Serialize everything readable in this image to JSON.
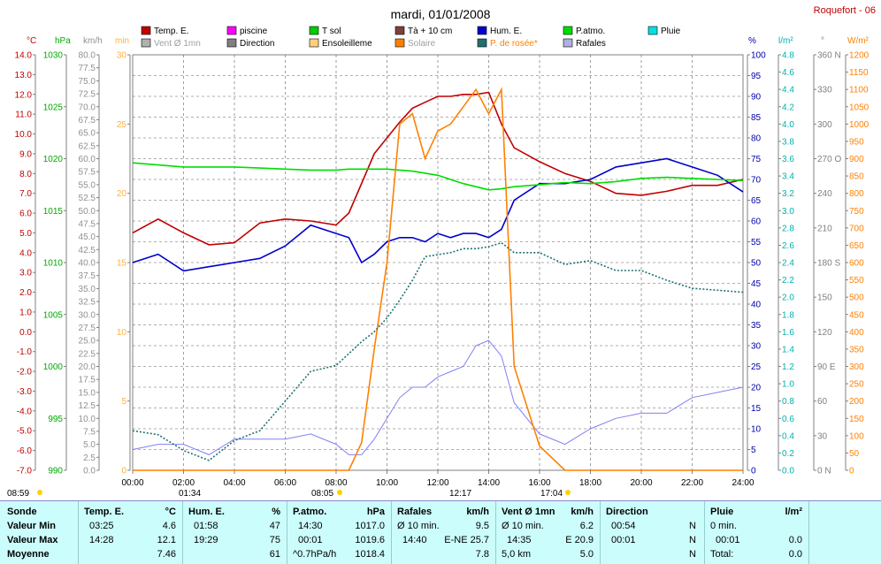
{
  "header": {
    "title": "mardi, 01/01/2008",
    "station": "Roquefort - 06"
  },
  "legend": [
    {
      "label": "Temp. E.",
      "color": "#c00000"
    },
    {
      "label": "piscine",
      "color": "#ff00ff"
    },
    {
      "label": "T sol",
      "color": "#00cc00"
    },
    {
      "label": "Tà + 10 cm",
      "color": "#804040"
    },
    {
      "label": "Hum. E.",
      "color": "#0000cc"
    },
    {
      "label": "P.atmo.",
      "color": "#00dd00"
    },
    {
      "label": "Pluie",
      "color": "#00e0e0"
    },
    {
      "label": "Vent Ø 1mn",
      "color": "#b0b0b0"
    },
    {
      "label": "Direction",
      "color": "#808080"
    },
    {
      "label": "Ensoleilleme",
      "color": "#ffd080"
    },
    {
      "label": "Solaire",
      "color": "#ff8000"
    },
    {
      "label": "P. de rosée*",
      "color": "#207070"
    },
    {
      "label": "Rafales",
      "color": "#b0b0e0"
    }
  ],
  "axes": {
    "temp": {
      "unit": "°C",
      "color": "#c00000",
      "ticks": [
        "14.0",
        "13.0",
        "12.0",
        "11.0",
        "10.0",
        "9.0",
        "8.0",
        "7.0",
        "6.0",
        "5.0",
        "4.0",
        "3.0",
        "2.0",
        "1.0",
        "0.0",
        "-1.0",
        "-2.0",
        "-3.0",
        "-4.0",
        "-5.0",
        "-6.0",
        "-7.0"
      ]
    },
    "hpa": {
      "unit": "hPa",
      "color": "#00aa00",
      "ticks": [
        "1030",
        "1025",
        "1020",
        "1015",
        "1010",
        "1005",
        "1000",
        "995",
        "990"
      ]
    },
    "kmh": {
      "unit": "km/h",
      "color": "#909090",
      "ticks": [
        "80.0",
        "77.5",
        "75.0",
        "72.5",
        "70.0",
        "67.5",
        "65.0",
        "62.5",
        "60.0",
        "57.5",
        "55.0",
        "52.5",
        "50.0",
        "47.5",
        "45.0",
        "42.5",
        "40.0",
        "37.5",
        "35.0",
        "32.5",
        "30.0",
        "27.5",
        "25.0",
        "22.5",
        "20.0",
        "17.5",
        "15.0",
        "12.5",
        "10.0",
        "7.5",
        "5.0",
        "2.5",
        "0.0"
      ]
    },
    "min": {
      "unit": "min",
      "color": "#ffb040",
      "ticks": [
        "30",
        "25",
        "20",
        "15",
        "10",
        "5",
        "0"
      ]
    },
    "pct": {
      "unit": "%",
      "color": "#0000aa",
      "ticks": [
        "100",
        "95",
        "90",
        "85",
        "80",
        "75",
        "70",
        "65",
        "60",
        "55",
        "50",
        "45",
        "40",
        "35",
        "30",
        "25",
        "20",
        "15",
        "10",
        "5",
        "0"
      ]
    },
    "rain": {
      "unit": "l/m²",
      "color": "#00b0b0",
      "ticks": [
        "4.8",
        "4.6",
        "4.4",
        "4.2",
        "4.0",
        "3.8",
        "3.6",
        "3.4",
        "3.2",
        "3.0",
        "2.8",
        "2.6",
        "2.4",
        "2.2",
        "2.0",
        "1.8",
        "1.6",
        "1.4",
        "1.2",
        "1.0",
        "0.8",
        "0.6",
        "0.4",
        "0.2",
        "0.0"
      ]
    },
    "dir": {
      "unit": "°",
      "color": "#808080",
      "ticks": [
        "360 N",
        "330",
        "300",
        "270 O",
        "240",
        "210",
        "180 S",
        "150",
        "120",
        "90 E",
        "60",
        "30",
        "0 N"
      ]
    },
    "wm2": {
      "unit": "W/m²",
      "color": "#ff8000",
      "ticks": [
        "1200",
        "1150",
        "1100",
        "1050",
        "1000",
        "950",
        "900",
        "850",
        "800",
        "750",
        "700",
        "650",
        "600",
        "550",
        "500",
        "450",
        "400",
        "350",
        "300",
        "250",
        "200",
        "150",
        "100",
        "50",
        "0"
      ]
    },
    "x_ticks": [
      "00:00",
      "02:00",
      "04:00",
      "06:00",
      "08:00",
      "10:00",
      "12:00",
      "14:00",
      "16:00",
      "18:00",
      "20:00",
      "22:00",
      "24:00"
    ]
  },
  "sun": {
    "sunrise": "08:05",
    "noon": "12:17",
    "sunset": "17:04",
    "daylength": "08:59",
    "twilight": "01:34"
  },
  "chart_data": {
    "type": "line",
    "title": "mardi, 01/01/2008",
    "x_hours": [
      0,
      1,
      2,
      3,
      4,
      5,
      6,
      7,
      8,
      8.5,
      9,
      9.5,
      10,
      10.5,
      11,
      11.5,
      12,
      12.5,
      13,
      13.5,
      14,
      14.5,
      15,
      16,
      17,
      18,
      19,
      20,
      21,
      22,
      23,
      24
    ],
    "series": [
      {
        "name": "Temp. E.",
        "axis": "temp",
        "color": "#c00000",
        "values": [
          5.0,
          5.7,
          5.0,
          4.4,
          4.5,
          5.5,
          5.7,
          5.6,
          5.4,
          6.0,
          7.5,
          9.0,
          9.8,
          10.6,
          11.3,
          11.6,
          11.9,
          11.9,
          12.0,
          12.0,
          12.1,
          10.5,
          9.3,
          8.6,
          8.0,
          7.6,
          7.0,
          6.9,
          7.1,
          7.4,
          7.4,
          7.7
        ]
      },
      {
        "name": "Hum. E.",
        "axis": "pct",
        "color": "#0000cc",
        "values": [
          50,
          52,
          48,
          49,
          50,
          51,
          54,
          59,
          57,
          56,
          50,
          52,
          55,
          56,
          56,
          55,
          57,
          56,
          57,
          57,
          56,
          58,
          65,
          69,
          69,
          70,
          73,
          74,
          75,
          73,
          71,
          67
        ]
      },
      {
        "name": "P.atmo.",
        "axis": "hpa",
        "color": "#00dd00",
        "values": [
          1019.6,
          1019.4,
          1019.2,
          1019.2,
          1019.2,
          1019.1,
          1019.0,
          1018.9,
          1018.9,
          1019.0,
          1019.0,
          1019.0,
          1019.0,
          1018.9,
          1018.8,
          1018.6,
          1018.4,
          1018.0,
          1017.6,
          1017.3,
          1017.0,
          1017.1,
          1017.3,
          1017.5,
          1017.7,
          1017.6,
          1017.8,
          1018.1,
          1018.2,
          1018.1,
          1018.0,
          1017.9
        ]
      },
      {
        "name": "Rafales",
        "axis": "kmh",
        "color": "#8080f0",
        "values": [
          4,
          5,
          5,
          3,
          6,
          6,
          6,
          7,
          5,
          3,
          3,
          6,
          10,
          14,
          16,
          16,
          18,
          19,
          20,
          24,
          25,
          22,
          13,
          7,
          5,
          8,
          10,
          11,
          11,
          14,
          15,
          16
        ]
      },
      {
        "name": "Solaire",
        "axis": "wm2",
        "color": "#ff8000",
        "values": [
          0,
          0,
          0,
          0,
          0,
          0,
          0,
          0,
          0,
          0,
          80,
          350,
          600,
          1000,
          1030,
          900,
          980,
          1000,
          1050,
          1100,
          1030,
          1100,
          300,
          70,
          0,
          0,
          0,
          0,
          0,
          0,
          0,
          0
        ]
      },
      {
        "name": "P. de rosée*",
        "axis": "temp",
        "color": "#207070",
        "values": [
          -5.0,
          -5.2,
          -6.0,
          -6.5,
          -5.5,
          -5.0,
          -3.5,
          -2.0,
          -1.7,
          -1.1,
          -0.5,
          0.0,
          0.7,
          1.6,
          2.6,
          3.8,
          3.9,
          4.0,
          4.2,
          4.2,
          4.3,
          4.5,
          4.0,
          4.0,
          3.4,
          3.6,
          3.1,
          3.1,
          2.6,
          2.2,
          2.1,
          2.0
        ]
      }
    ]
  },
  "stats": {
    "headers": {
      "sonde": "Sonde",
      "temp": "Temp. E.",
      "temp_u": "°C",
      "hum": "Hum. E.",
      "hum_u": "%",
      "patmo": "P.atmo.",
      "patmo_u": "hPa",
      "rafales": "Rafales",
      "rafales_u": "km/h",
      "vent": "Vent Ø 1mn",
      "vent_u": "km/h",
      "direction": "Direction",
      "pluie": "Pluie",
      "pluie_u": "l/m²"
    },
    "rows": [
      {
        "label": "Valeur Min",
        "t_time": "03:25",
        "t_val": "4.6",
        "h_time": "01:58",
        "h_val": "47",
        "p_time": "14:30",
        "p_val": "1017.0",
        "r_time": "Ø 10 min.",
        "r_val": "9.5",
        "v_time": "Ø 10 min.",
        "v_val": "6.2",
        "d_time": "00:54",
        "d_val": "N",
        "pl_time": "0 min.",
        "pl_val": ""
      },
      {
        "label": "Valeur Max",
        "t_time": "14:28",
        "t_val": "12.1",
        "h_time": "19:29",
        "h_val": "75",
        "p_time": "00:01",
        "p_val": "1019.6",
        "r_time": "14:40",
        "r_val": "E-NE 25.7",
        "v_time": "14:35",
        "v_val": "E 20.9",
        "d_time": "00:01",
        "d_val": "N",
        "pl_time": "00:01",
        "pl_val": "0.0"
      },
      {
        "label": "Moyenne",
        "t_time": "",
        "t_val": "7.46",
        "h_time": "",
        "h_val": "61",
        "p_time": "^0.7hPa/h",
        "p_val": "1018.4",
        "r_time": "",
        "r_val": "7.8",
        "v_time": "5,0 km",
        "v_val": "5.0",
        "d_time": "",
        "d_val": "N",
        "pl_time": "Total:",
        "pl_val": "0.0"
      }
    ]
  }
}
